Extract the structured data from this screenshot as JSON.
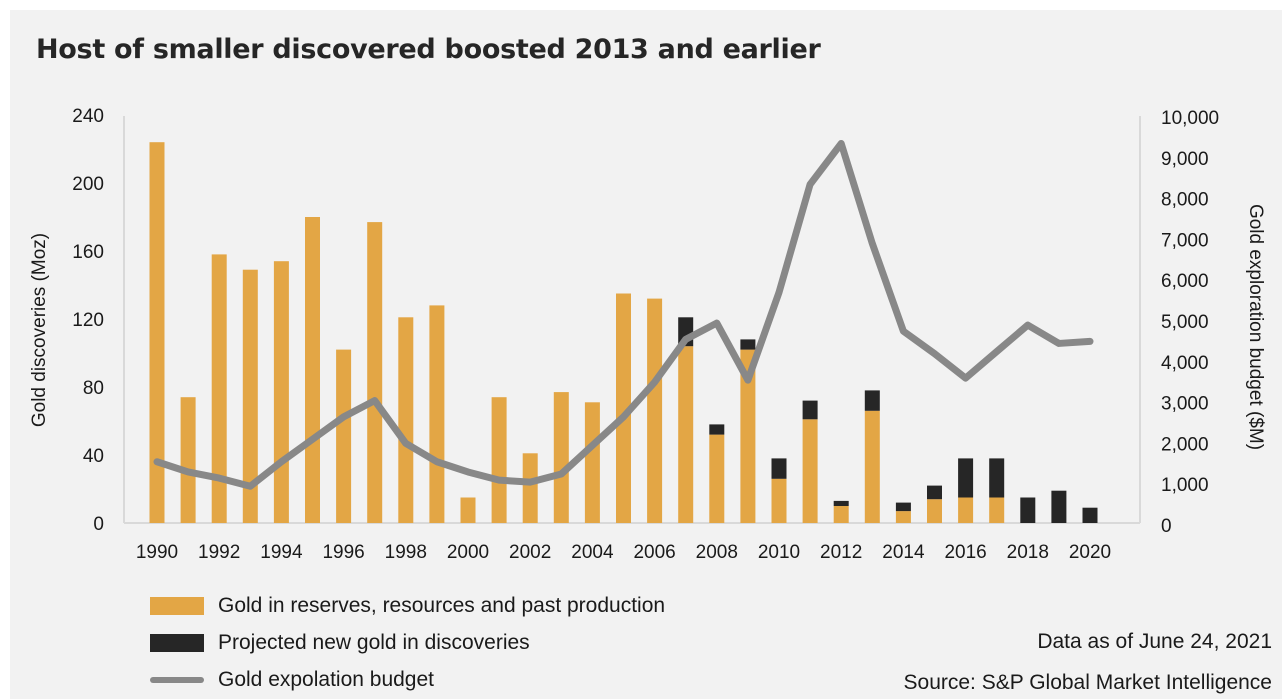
{
  "chart_data": {
    "type": "bar",
    "title": "Host of smaller discovered boosted 2013 and earlier",
    "ylabel": "Gold discoveries (Moz)",
    "y2label": "Gold exploration budget ($M)",
    "ylim": [
      0,
      240
    ],
    "y2lim": [
      0,
      10000
    ],
    "yticks": [
      "0",
      "40",
      "80",
      "120",
      "160",
      "200",
      "240"
    ],
    "y2ticks": [
      "0",
      "1,000",
      "2,000",
      "3,000",
      "4,000",
      "5,000",
      "6,000",
      "7,000",
      "8,000",
      "9,000",
      "10,000"
    ],
    "xticks": [
      "1990",
      "1992",
      "1994",
      "1996",
      "1998",
      "2000",
      "2002",
      "2004",
      "2006",
      "2008",
      "2010",
      "2012",
      "2014",
      "2016",
      "2018",
      "2020"
    ],
    "categories": [
      1990,
      1991,
      1992,
      1993,
      1994,
      1995,
      1996,
      1997,
      1998,
      1999,
      2000,
      2001,
      2002,
      2003,
      2004,
      2005,
      2006,
      2007,
      2008,
      2009,
      2010,
      2011,
      2012,
      2013,
      2014,
      2015,
      2016,
      2017,
      2018,
      2019,
      2020
    ],
    "series": [
      {
        "name": "Gold in reserves, resources and past production",
        "kind": "bar",
        "axis": "left",
        "color": "#e3a645",
        "values": [
          224,
          74,
          158,
          149,
          154,
          180,
          102,
          177,
          121,
          128,
          15,
          74,
          41,
          77,
          71,
          135,
          132,
          104,
          52,
          102,
          26,
          61,
          10,
          66,
          7,
          14,
          15,
          15,
          0,
          0,
          0
        ]
      },
      {
        "name": "Projected new gold in discoveries",
        "kind": "bar",
        "axis": "left",
        "color": "#262626",
        "values": [
          0,
          0,
          0,
          0,
          0,
          0,
          0,
          0,
          0,
          0,
          0,
          0,
          0,
          0,
          0,
          0,
          0,
          17,
          6,
          6,
          12,
          11,
          3,
          12,
          5,
          8,
          23,
          23,
          15,
          19,
          9
        ]
      },
      {
        "name": "Gold expolation budget",
        "kind": "line",
        "axis": "right",
        "color": "#888888",
        "values": [
          1550,
          1300,
          1150,
          950,
          1550,
          2100,
          2650,
          3050,
          2000,
          1550,
          1300,
          1100,
          1050,
          1250,
          1950,
          2650,
          3500,
          4550,
          4950,
          3550,
          5700,
          8350,
          9350,
          6900,
          4750,
          4200,
          3600,
          4250,
          4900,
          4450,
          4500
        ]
      }
    ],
    "grid": false,
    "legend_position": "bottom-left"
  },
  "notes": {
    "data_date": "Data as of June 24, 2021",
    "source": "Source: S&P Global Market Intelligence"
  }
}
